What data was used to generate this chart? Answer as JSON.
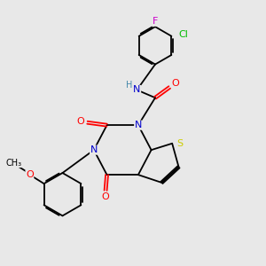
{
  "bg_color": "#e8e8e8",
  "bond_color": "#000000",
  "atom_colors": {
    "N": "#0000cc",
    "O": "#ff0000",
    "S": "#cccc00",
    "F": "#cc00cc",
    "Cl": "#00bb00",
    "H": "#4488aa",
    "C": "#000000"
  },
  "font_size": 7.5,
  "fig_size": [
    3.0,
    3.0
  ],
  "dpi": 100
}
